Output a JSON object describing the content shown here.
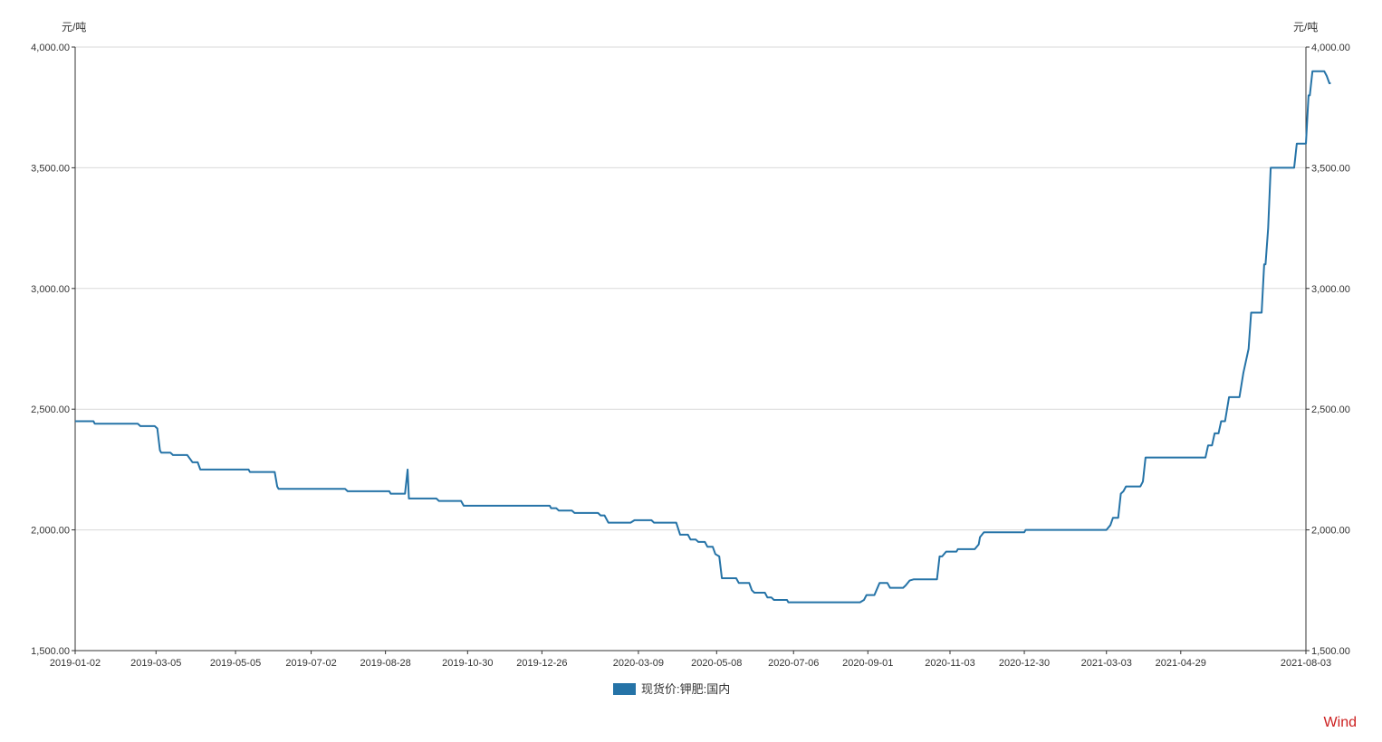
{
  "chart_data": {
    "type": "line",
    "left_axis_unit": "元/吨",
    "right_axis_unit": "元/吨",
    "ylim": [
      1500,
      4000
    ],
    "y_ticks": [
      1500,
      2000,
      2500,
      3000,
      3500,
      4000
    ],
    "y_tick_labels": [
      "1,500.00",
      "2,000.00",
      "2,500.00",
      "3,000.00",
      "3,500.00",
      "4,000.00"
    ],
    "x_range": [
      "2019-01-02",
      "2021-08-03"
    ],
    "x_ticks": [
      "2019-01-02",
      "2019-03-05",
      "2019-05-05",
      "2019-07-02",
      "2019-08-28",
      "2019-10-30",
      "2019-12-26",
      "2020-03-09",
      "2020-05-08",
      "2020-07-06",
      "2020-09-01",
      "2020-11-03",
      "2020-12-30",
      "2021-03-03",
      "2021-04-29",
      "2021-08-03"
    ],
    "grid": "horizontal",
    "legend_position": "bottom",
    "series": [
      {
        "name": "现货价:钾肥:国内",
        "color": "#2573a7",
        "points": [
          [
            "2019-01-02",
            2450
          ],
          [
            "2019-01-16",
            2450
          ],
          [
            "2019-01-17",
            2440
          ],
          [
            "2019-02-19",
            2440
          ],
          [
            "2019-02-21",
            2430
          ],
          [
            "2019-03-04",
            2430
          ],
          [
            "2019-03-06",
            2420
          ],
          [
            "2019-03-08",
            2330
          ],
          [
            "2019-03-09",
            2320
          ],
          [
            "2019-03-16",
            2320
          ],
          [
            "2019-03-18",
            2310
          ],
          [
            "2019-03-29",
            2310
          ],
          [
            "2019-04-02",
            2280
          ],
          [
            "2019-04-06",
            2280
          ],
          [
            "2019-04-08",
            2250
          ],
          [
            "2019-05-15",
            2250
          ],
          [
            "2019-05-16",
            2240
          ],
          [
            "2019-06-04",
            2240
          ],
          [
            "2019-06-06",
            2180
          ],
          [
            "2019-06-07",
            2170
          ],
          [
            "2019-07-28",
            2170
          ],
          [
            "2019-07-30",
            2160
          ],
          [
            "2019-08-31",
            2160
          ],
          [
            "2019-09-01",
            2150
          ],
          [
            "2019-09-12",
            2150
          ],
          [
            "2019-09-14",
            2250
          ],
          [
            "2019-09-15",
            2130
          ],
          [
            "2019-10-06",
            2130
          ],
          [
            "2019-10-08",
            2120
          ],
          [
            "2019-10-25",
            2120
          ],
          [
            "2019-10-27",
            2100
          ],
          [
            "2020-01-01",
            2100
          ],
          [
            "2020-01-02",
            2090
          ],
          [
            "2020-01-06",
            2090
          ],
          [
            "2020-01-08",
            2080
          ],
          [
            "2020-01-18",
            2080
          ],
          [
            "2020-01-20",
            2070
          ],
          [
            "2020-02-07",
            2070
          ],
          [
            "2020-02-09",
            2060
          ],
          [
            "2020-02-12",
            2060
          ],
          [
            "2020-02-15",
            2030
          ],
          [
            "2020-03-03",
            2030
          ],
          [
            "2020-03-06",
            2040
          ],
          [
            "2020-03-19",
            2040
          ],
          [
            "2020-03-21",
            2030
          ],
          [
            "2020-04-07",
            2030
          ],
          [
            "2020-04-10",
            1980
          ],
          [
            "2020-04-16",
            1980
          ],
          [
            "2020-04-18",
            1960
          ],
          [
            "2020-04-22",
            1960
          ],
          [
            "2020-04-24",
            1950
          ],
          [
            "2020-04-29",
            1950
          ],
          [
            "2020-05-01",
            1930
          ],
          [
            "2020-05-05",
            1930
          ],
          [
            "2020-05-07",
            1900
          ],
          [
            "2020-05-10",
            1890
          ],
          [
            "2020-05-12",
            1800
          ],
          [
            "2020-05-23",
            1800
          ],
          [
            "2020-05-25",
            1780
          ],
          [
            "2020-06-02",
            1780
          ],
          [
            "2020-06-04",
            1750
          ],
          [
            "2020-06-06",
            1740
          ],
          [
            "2020-06-14",
            1740
          ],
          [
            "2020-06-16",
            1720
          ],
          [
            "2020-06-19",
            1720
          ],
          [
            "2020-06-21",
            1710
          ],
          [
            "2020-07-01",
            1710
          ],
          [
            "2020-07-02",
            1700
          ],
          [
            "2020-08-26",
            1700
          ],
          [
            "2020-08-29",
            1710
          ],
          [
            "2020-08-31",
            1730
          ],
          [
            "2020-09-06",
            1730
          ],
          [
            "2020-09-10",
            1780
          ],
          [
            "2020-09-16",
            1780
          ],
          [
            "2020-09-18",
            1760
          ],
          [
            "2020-09-28",
            1760
          ],
          [
            "2020-09-30",
            1770
          ],
          [
            "2020-10-03",
            1790
          ],
          [
            "2020-10-06",
            1795
          ],
          [
            "2020-10-24",
            1795
          ],
          [
            "2020-10-26",
            1890
          ],
          [
            "2020-10-28",
            1890
          ],
          [
            "2020-10-31",
            1910
          ],
          [
            "2020-11-08",
            1910
          ],
          [
            "2020-11-09",
            1920
          ],
          [
            "2020-11-22",
            1920
          ],
          [
            "2020-11-25",
            1940
          ],
          [
            "2020-11-26",
            1970
          ],
          [
            "2020-11-29",
            1990
          ],
          [
            "2020-12-30",
            1990
          ],
          [
            "2020-12-31",
            2000
          ],
          [
            "2021-03-03",
            2000
          ],
          [
            "2021-03-06",
            2020
          ],
          [
            "2021-03-08",
            2050
          ],
          [
            "2021-03-12",
            2050
          ],
          [
            "2021-03-14",
            2150
          ],
          [
            "2021-03-16",
            2160
          ],
          [
            "2021-03-18",
            2180
          ],
          [
            "2021-03-29",
            2180
          ],
          [
            "2021-03-31",
            2200
          ],
          [
            "2021-04-02",
            2300
          ],
          [
            "2021-05-18",
            2300
          ],
          [
            "2021-05-20",
            2350
          ],
          [
            "2021-05-23",
            2350
          ],
          [
            "2021-05-25",
            2400
          ],
          [
            "2021-05-28",
            2400
          ],
          [
            "2021-05-30",
            2450
          ],
          [
            "2021-06-02",
            2450
          ],
          [
            "2021-06-05",
            2550
          ],
          [
            "2021-06-13",
            2550
          ],
          [
            "2021-06-16",
            2650
          ],
          [
            "2021-06-20",
            2750
          ],
          [
            "2021-06-22",
            2900
          ],
          [
            "2021-06-30",
            2900
          ],
          [
            "2021-07-02",
            3100
          ],
          [
            "2021-07-03",
            3100
          ],
          [
            "2021-07-05",
            3250
          ],
          [
            "2021-07-07",
            3500
          ],
          [
            "2021-07-25",
            3500
          ],
          [
            "2021-07-27",
            3600
          ],
          [
            "2021-08-03",
            3600
          ],
          [
            "2021-08-05",
            3800
          ],
          [
            "2021-08-06",
            3800
          ],
          [
            "2021-08-08",
            3900
          ],
          [
            "2021-08-17",
            3900
          ],
          [
            "2021-08-19",
            3880
          ],
          [
            "2021-08-21",
            3850
          ],
          [
            "2021-08-22",
            3850
          ]
        ]
      }
    ]
  },
  "watermark": "Wind"
}
